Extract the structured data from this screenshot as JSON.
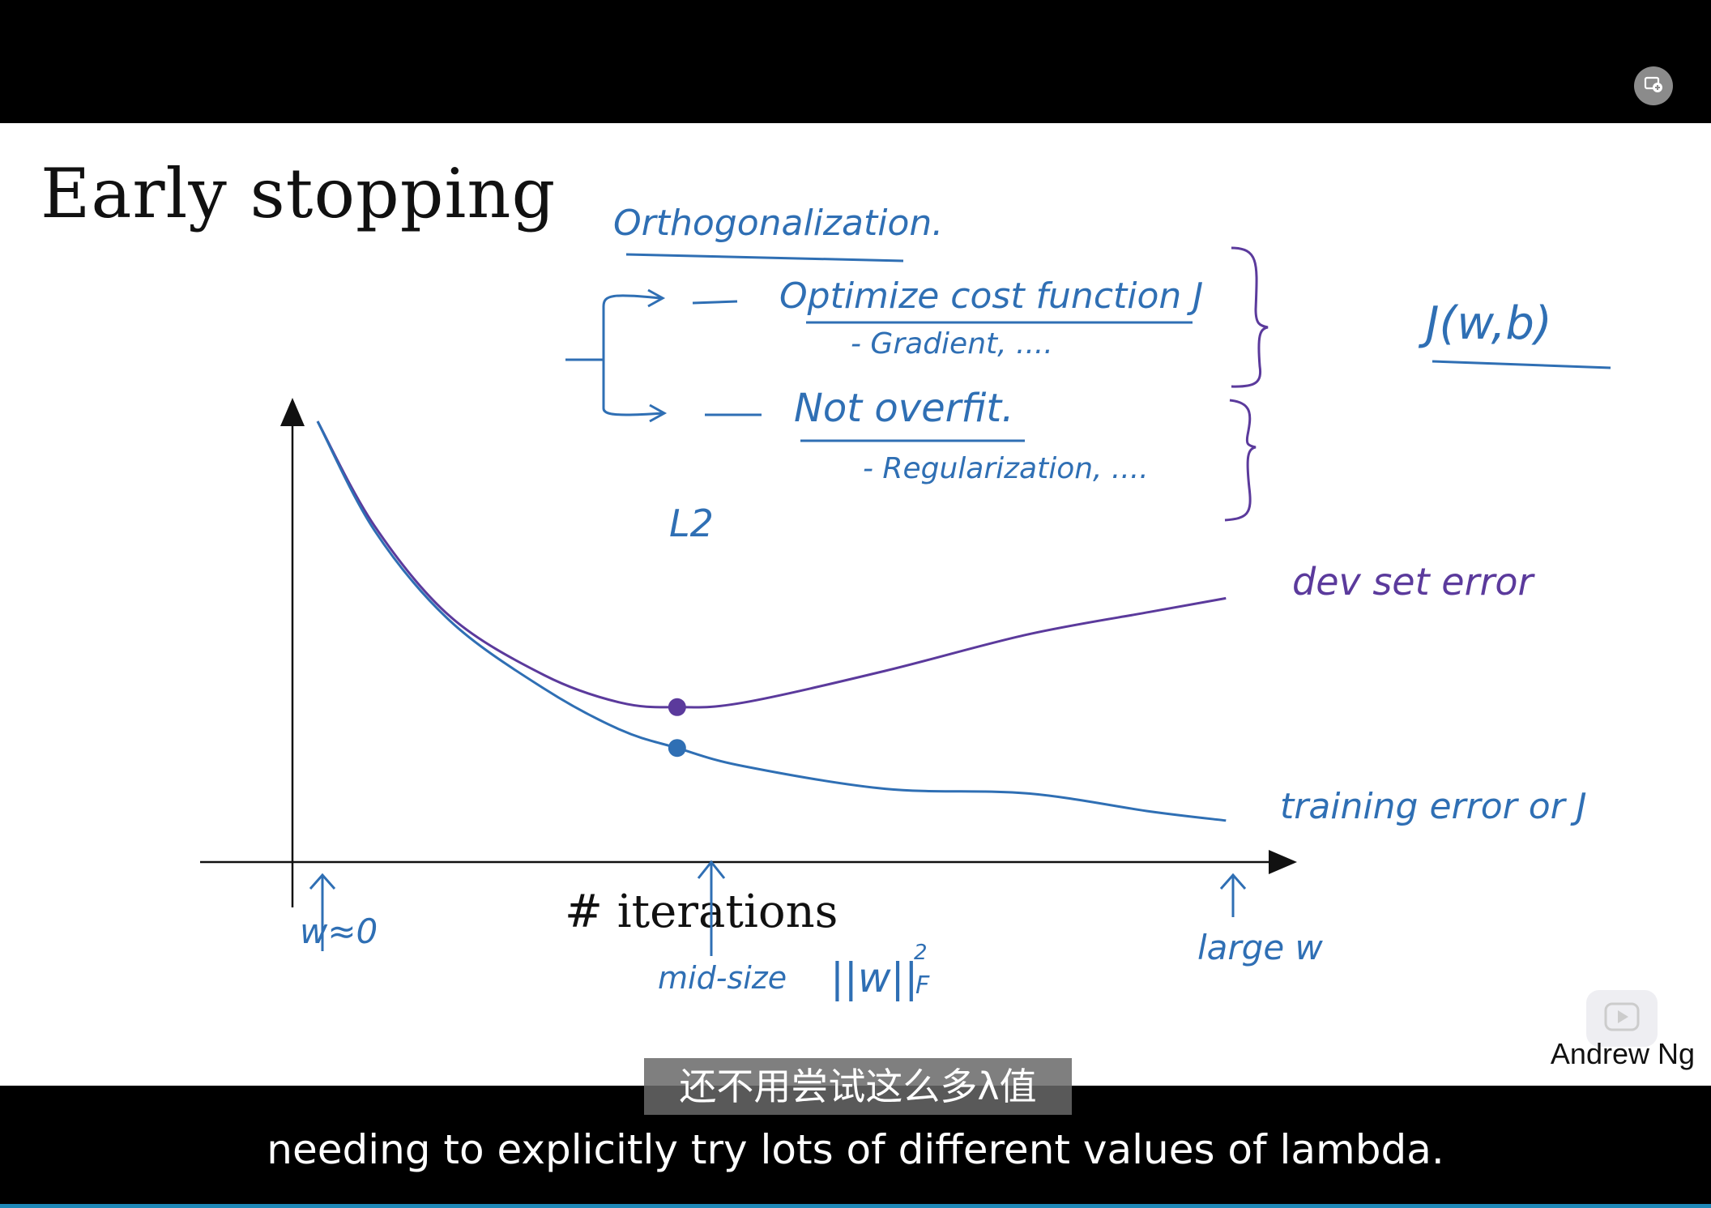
{
  "slide": {
    "title": "Early stopping",
    "credit": "Andrew Ng",
    "axis_label_x": "# iterations"
  },
  "annotations": {
    "orthogonalization": "Orthogonalization.",
    "optimize": "Optimize cost function J",
    "gradient": "- Gradient, ....",
    "not_overfit": "Not overfit.",
    "regularization": "- Regularization, ....",
    "j_wb": "J(w,b)",
    "l2": "L2",
    "dev_label": "dev set error",
    "train_label": "training error or J",
    "w_zero": "w≈0",
    "mid_size": "mid-size",
    "norm": "||w||",
    "norm_sup": "2",
    "norm_sub": "F",
    "large_w": "large w"
  },
  "subtitles": {
    "chinese": "还不用尝试这么多λ值",
    "english": "needing to explicitly try lots of different values of lambda."
  },
  "colors": {
    "ink_blue": "#2f6fb4",
    "ink_purple": "#5b3a9c",
    "axis": "#111111",
    "progress": "#1e88b8"
  },
  "icons": {
    "pip": "picture-in-picture-icon",
    "player_logo": "play-logo-icon"
  },
  "chart_data": {
    "type": "line",
    "xlabel": "# iterations",
    "ylabel": "",
    "series": [
      {
        "name": "dev set error",
        "color": "#5b3a9c",
        "points": [
          [
            0,
            1.0
          ],
          [
            0.06,
            0.77
          ],
          [
            0.14,
            0.57
          ],
          [
            0.24,
            0.44
          ],
          [
            0.32,
            0.38
          ],
          [
            0.38,
            0.37
          ],
          [
            0.45,
            0.38
          ],
          [
            0.6,
            0.45
          ],
          [
            0.75,
            0.53
          ],
          [
            0.88,
            0.58
          ],
          [
            0.96,
            0.61
          ]
        ]
      },
      {
        "name": "training error or J",
        "color": "#2f6fb4",
        "points": [
          [
            0,
            1.0
          ],
          [
            0.06,
            0.76
          ],
          [
            0.14,
            0.56
          ],
          [
            0.24,
            0.41
          ],
          [
            0.32,
            0.32
          ],
          [
            0.38,
            0.28
          ],
          [
            0.45,
            0.24
          ],
          [
            0.6,
            0.19
          ],
          [
            0.75,
            0.18
          ],
          [
            0.88,
            0.14
          ],
          [
            0.96,
            0.12
          ]
        ]
      }
    ],
    "marked_x": 0.38,
    "xlim": [
      0,
      1
    ],
    "ylim": [
      0,
      1.05
    ]
  }
}
